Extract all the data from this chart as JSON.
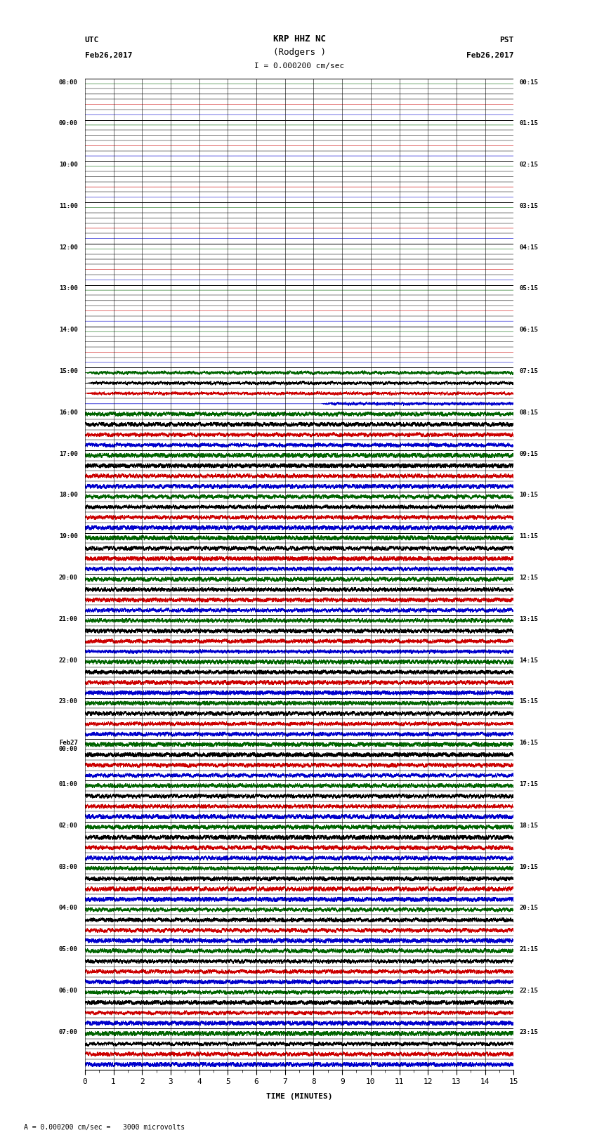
{
  "title_line1": "KRP HHZ NC",
  "title_line2": "(Rodgers )",
  "title_scale": "I = 0.000200 cm/sec",
  "left_label_top": "UTC",
  "left_label_date": "Feb26,2017",
  "right_label_top": "PST",
  "right_label_date": "Feb26,2017",
  "bottom_label": "TIME (MINUTES)",
  "bottom_note": "= 0.000200 cm/sec =   3000 microvolts",
  "utc_times_left": [
    "08:00",
    "09:00",
    "10:00",
    "11:00",
    "12:00",
    "13:00",
    "14:00",
    "15:00",
    "16:00",
    "17:00",
    "18:00",
    "19:00",
    "20:00",
    "21:00",
    "22:00",
    "23:00",
    "Feb27\n00:00",
    "01:00",
    "02:00",
    "03:00",
    "04:00",
    "05:00",
    "06:00",
    "07:00"
  ],
  "pst_times_right": [
    "00:15",
    "01:15",
    "02:15",
    "03:15",
    "04:15",
    "05:15",
    "06:15",
    "07:15",
    "08:15",
    "09:15",
    "10:15",
    "11:15",
    "12:15",
    "13:15",
    "14:15",
    "15:15",
    "16:15",
    "17:15",
    "18:15",
    "19:15",
    "20:15",
    "21:15",
    "22:15",
    "23:15"
  ],
  "num_hours": 24,
  "traces_per_hour": 4,
  "colors": [
    "#006400",
    "#000000",
    "#cc0000",
    "#0000cc"
  ],
  "quiet_hours": 7,
  "transition_hour": 6,
  "bg_color": "#ffffff",
  "xmin": 0,
  "xmax": 15,
  "minutes_ticks": [
    0,
    1,
    2,
    3,
    4,
    5,
    6,
    7,
    8,
    9,
    10,
    11,
    12,
    13,
    14,
    15
  ]
}
